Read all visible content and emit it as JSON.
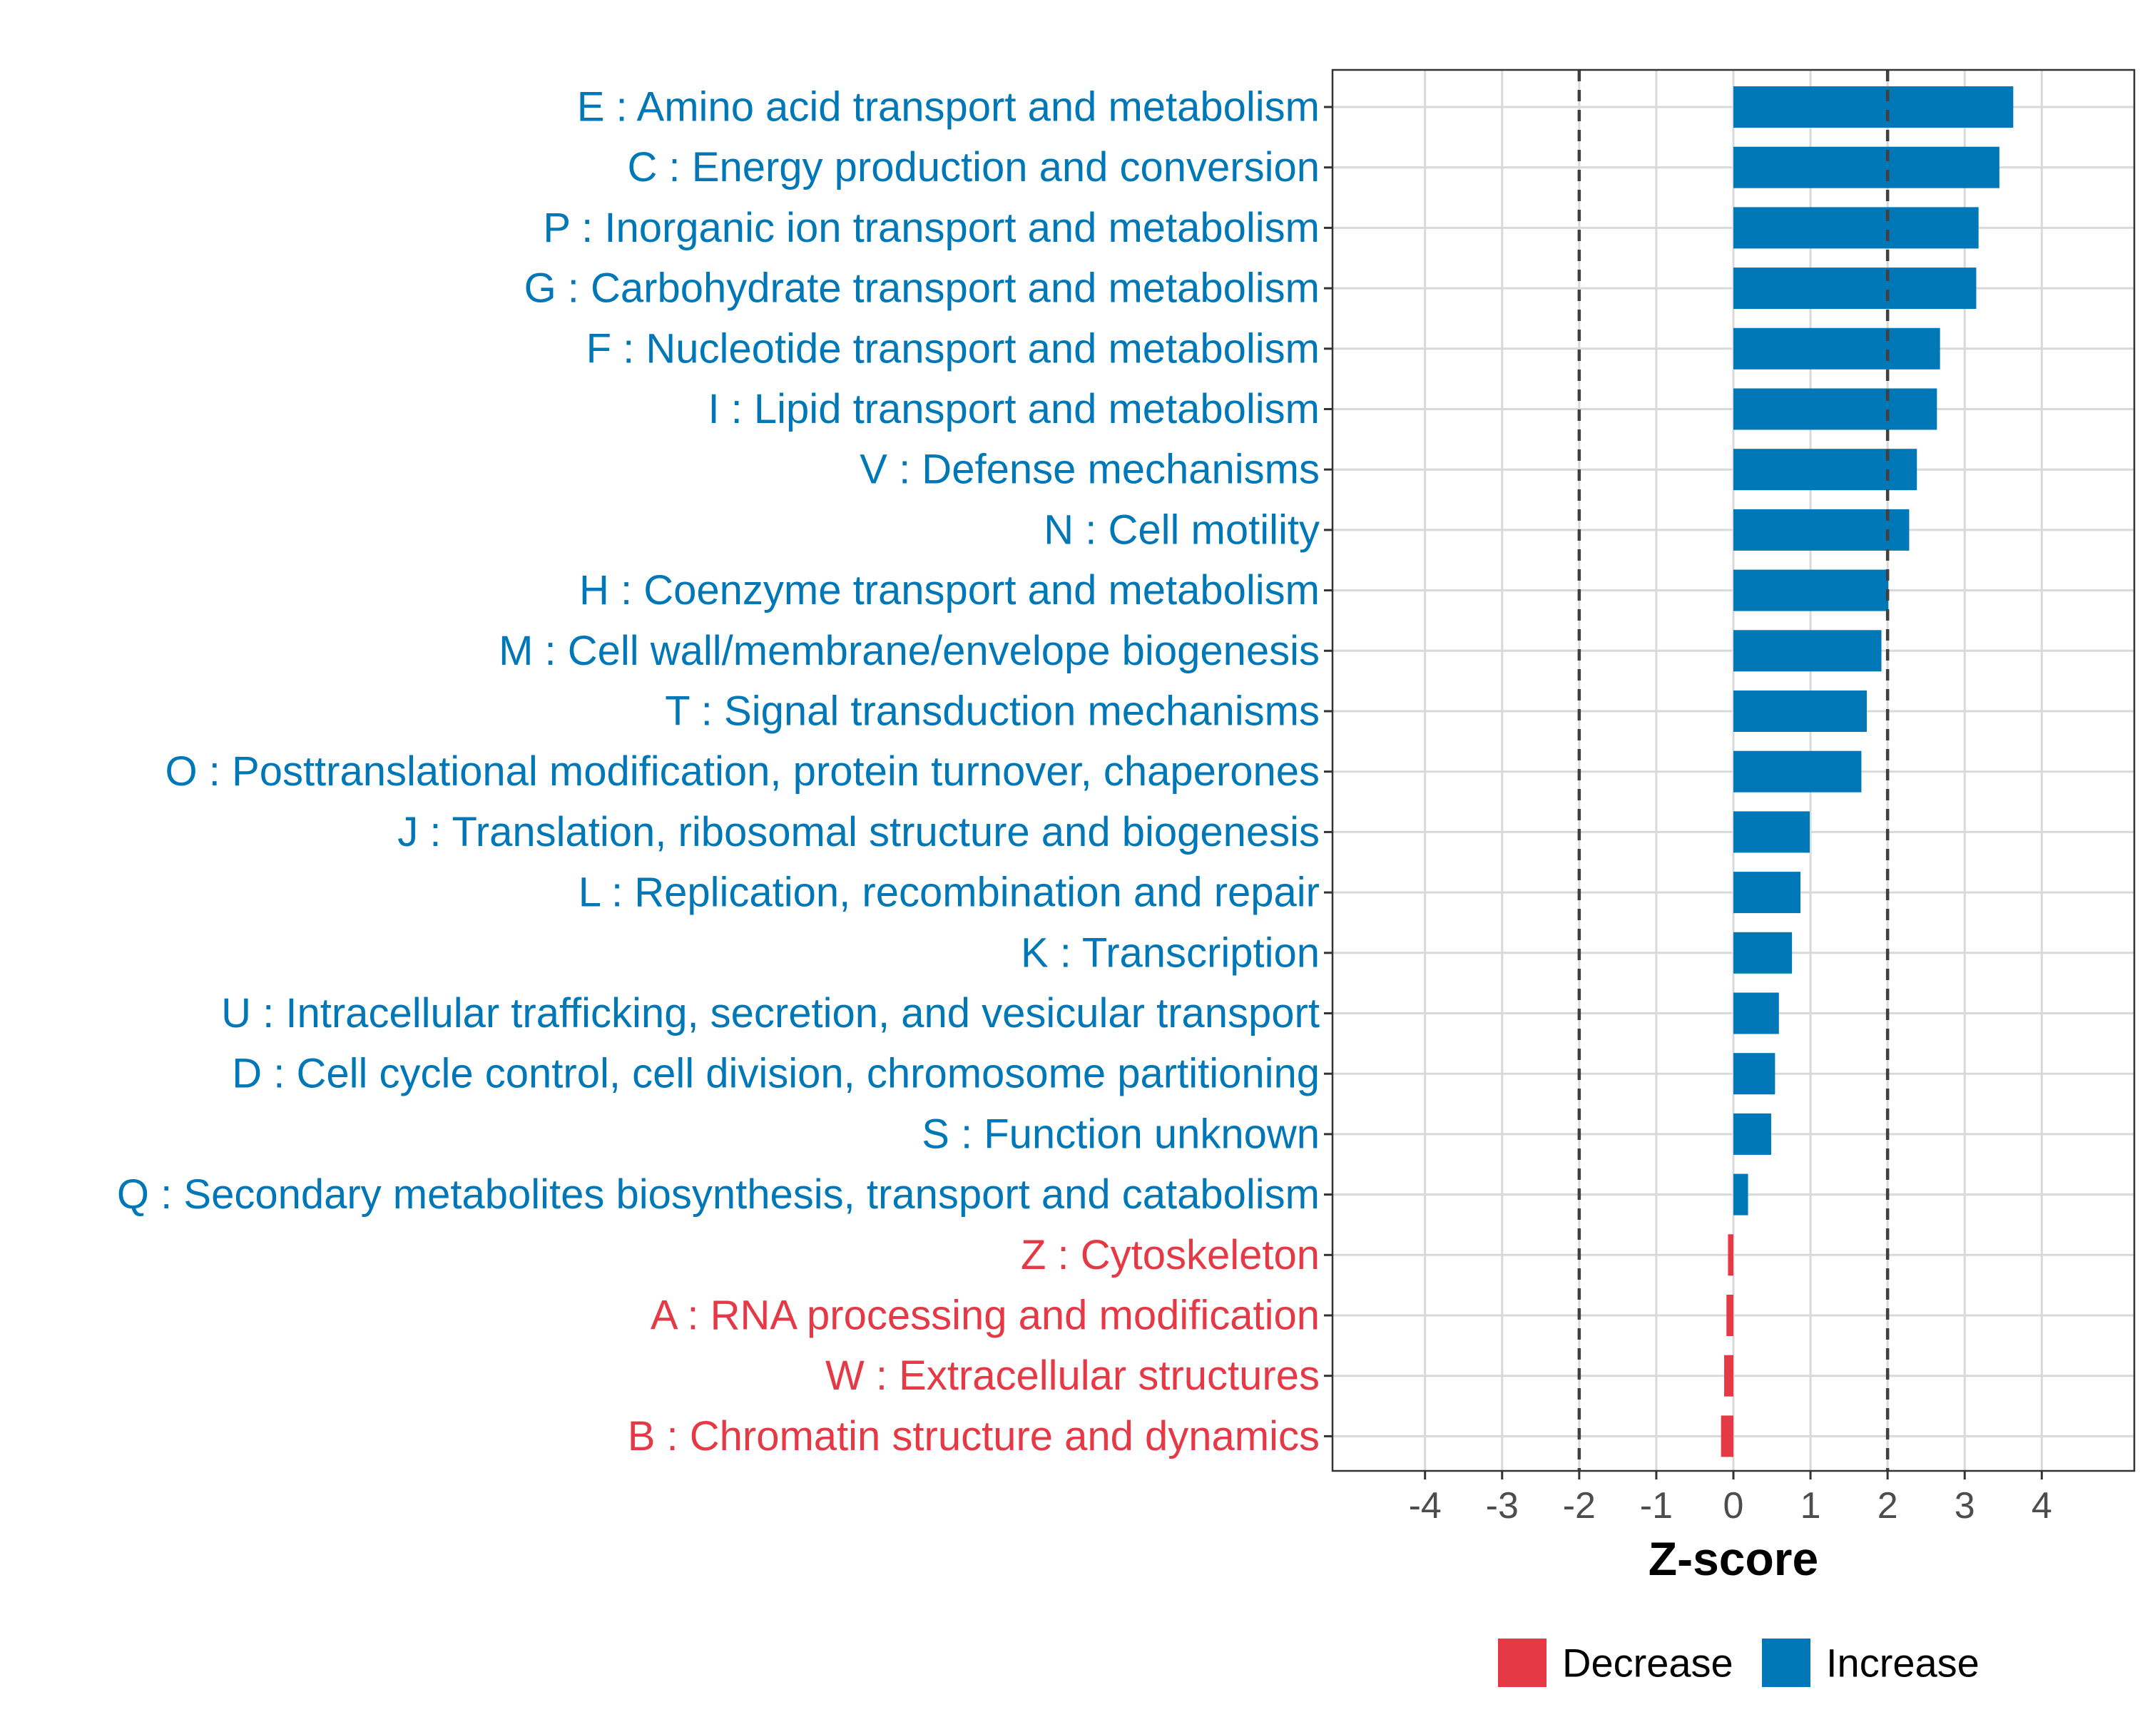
{
  "chart_data": {
    "type": "bar",
    "orientation": "horizontal",
    "xlabel": "Z-score",
    "ylabel": "",
    "xlim": [
      -5.2,
      5.2
    ],
    "x_ticks": [
      -4,
      -3,
      -2,
      -1,
      0,
      1,
      2,
      3,
      4
    ],
    "threshold_lines": [
      -2,
      2
    ],
    "grid": true,
    "categories": [
      {
        "label": "E : Amino acid transport and metabolism",
        "value": 3.63,
        "group": "Increase"
      },
      {
        "label": "C : Energy production and conversion",
        "value": 3.45,
        "group": "Increase"
      },
      {
        "label": "P : Inorganic ion transport and metabolism",
        "value": 3.18,
        "group": "Increase"
      },
      {
        "label": "G : Carbohydrate transport and metabolism",
        "value": 3.15,
        "group": "Increase"
      },
      {
        "label": "F : Nucleotide transport and metabolism",
        "value": 2.68,
        "group": "Increase"
      },
      {
        "label": "I : Lipid transport and metabolism",
        "value": 2.64,
        "group": "Increase"
      },
      {
        "label": "V : Defense mechanisms",
        "value": 2.38,
        "group": "Increase"
      },
      {
        "label": "N : Cell motility",
        "value": 2.28,
        "group": "Increase"
      },
      {
        "label": "H : Coenzyme transport and metabolism",
        "value": 2.01,
        "group": "Increase"
      },
      {
        "label": "M : Cell wall/membrane/envelope biogenesis",
        "value": 1.92,
        "group": "Increase"
      },
      {
        "label": "T : Signal transduction mechanisms",
        "value": 1.73,
        "group": "Increase"
      },
      {
        "label": "O : Posttranslational modification, protein turnover, chaperones",
        "value": 1.66,
        "group": "Increase"
      },
      {
        "label": "J : Translation, ribosomal structure and biogenesis",
        "value": 0.99,
        "group": "Increase"
      },
      {
        "label": "L : Replication, recombination and repair",
        "value": 0.87,
        "group": "Increase"
      },
      {
        "label": "K : Transcription",
        "value": 0.76,
        "group": "Increase"
      },
      {
        "label": "U : Intracellular trafficking, secretion, and vesicular transport",
        "value": 0.59,
        "group": "Increase"
      },
      {
        "label": "D : Cell cycle control, cell division, chromosome partitioning",
        "value": 0.54,
        "group": "Increase"
      },
      {
        "label": "S : Function unknown",
        "value": 0.49,
        "group": "Increase"
      },
      {
        "label": "Q : Secondary metabolites biosynthesis, transport and catabolism",
        "value": 0.19,
        "group": "Increase"
      },
      {
        "label": "Z : Cytoskeleton",
        "value": -0.07,
        "group": "Decrease"
      },
      {
        "label": "A : RNA processing and modification",
        "value": -0.09,
        "group": "Decrease"
      },
      {
        "label": "W : Extracellular structures",
        "value": -0.12,
        "group": "Decrease"
      },
      {
        "label": "B : Chromatin structure and dynamics",
        "value": -0.16,
        "group": "Decrease"
      }
    ],
    "legend": {
      "placement": "bottom",
      "entries": [
        {
          "label": "Decrease",
          "color": "#E63946"
        },
        {
          "label": "Increase",
          "color": "#0077B6"
        }
      ]
    },
    "colors": {
      "Decrease": "#E63946",
      "Increase": "#0077B6",
      "grid": "#d9d9d9",
      "panel_border": "#333333",
      "threshold_line": "#404040"
    }
  }
}
